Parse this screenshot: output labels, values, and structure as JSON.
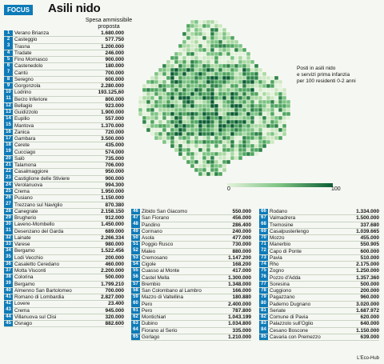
{
  "header": {
    "badge": "FOCUS",
    "title": "Asili nido",
    "column_header": "Spesa ammissibile proposta"
  },
  "map": {
    "caption_line1": "Posti in asili nido",
    "caption_line2": "e servizi prima infanzia",
    "caption_line3": "per 100 residenti 0-2 anni",
    "scale_min": "0",
    "scale_max": "100",
    "colors": {
      "light": "#e4f2db",
      "mid": "#7cc383",
      "dark": "#0c5e34",
      "border": "#ffffff"
    }
  },
  "footer": {
    "credit": "L'Eco-Hub"
  },
  "chart_data": {
    "type": "table",
    "column_header": "Spesa ammissibile proposta",
    "rows": [
      {
        "rank": "1",
        "name": "Verano Brianza",
        "value": "1.680.000"
      },
      {
        "rank": "2",
        "name": "Casteggio",
        "value": "577.750"
      },
      {
        "rank": "3",
        "name": "Trasna",
        "value": "1.200.000"
      },
      {
        "rank": "4",
        "name": "Tradate",
        "value": "246.000"
      },
      {
        "rank": "5",
        "name": "Fino Mornasco",
        "value": "900.000"
      },
      {
        "rank": "6",
        "name": "Castenedolo",
        "value": "180.000"
      },
      {
        "rank": "7",
        "name": "Cantù",
        "value": "700.000"
      },
      {
        "rank": "8",
        "name": "Seregno",
        "value": "600.000"
      },
      {
        "rank": "9",
        "name": "Gorgonzola",
        "value": "2.280.000"
      },
      {
        "rank": "10",
        "name": "Lodrino",
        "value": "193.125,60"
      },
      {
        "rank": "11",
        "name": "Berzo Inferiore",
        "value": "800.000"
      },
      {
        "rank": "12",
        "name": "Bellagio",
        "value": "923.000"
      },
      {
        "rank": "13",
        "name": "Guidizzolo",
        "value": "1.900.000"
      },
      {
        "rank": "14",
        "name": "Eupilio",
        "value": "557.000"
      },
      {
        "rank": "15",
        "name": "Mantova",
        "value": "1.370.000"
      },
      {
        "rank": "16",
        "name": "Zanica",
        "value": "720.000"
      },
      {
        "rank": "17",
        "name": "Gambara",
        "value": "3.500.000"
      },
      {
        "rank": "18",
        "name": "Cerete",
        "value": "435.000"
      },
      {
        "rank": "19",
        "name": "Cucciago",
        "value": "574.000"
      },
      {
        "rank": "20",
        "name": "Salò",
        "value": "735.000"
      },
      {
        "rank": "21",
        "name": "Talamona",
        "value": "706.000"
      },
      {
        "rank": "22",
        "name": "Casalmaggiore",
        "value": "950.000"
      },
      {
        "rank": "23",
        "name": "Castiglione delle Stiviere",
        "value": "900.000"
      },
      {
        "rank": "24",
        "name": "Verolanuova",
        "value": "994.300"
      },
      {
        "rank": "25",
        "name": "Crema",
        "value": "1.950.000"
      },
      {
        "rank": "26",
        "name": "Pusiano",
        "value": "1.150.000"
      },
      {
        "rank": "27",
        "name": "Trezzano sul Naviglio",
        "value": "870.380"
      },
      {
        "rank": "28",
        "name": "Canegrate",
        "value": "2.158.150"
      },
      {
        "rank": "29",
        "name": "Brugherio",
        "value": "912.000"
      },
      {
        "rank": "30",
        "name": "Laveno-Mombello",
        "value": "1.450.000"
      },
      {
        "rank": "31",
        "name": "Desenzano del Garda",
        "value": "689.000"
      },
      {
        "rank": "32",
        "name": "Lainate",
        "value": "2.266.334"
      },
      {
        "rank": "33",
        "name": "Varese",
        "value": "980.000"
      },
      {
        "rank": "34",
        "name": "Bergamo",
        "value": "1.522.456"
      },
      {
        "rank": "35",
        "name": "Lodi Vecchio",
        "value": "200.000"
      },
      {
        "rank": "36",
        "name": "Casaletto Ceredano",
        "value": "460.000"
      },
      {
        "rank": "37",
        "name": "Motta Visconti",
        "value": "2.200.000"
      },
      {
        "rank": "38",
        "name": "Colorina",
        "value": "500.000"
      },
      {
        "rank": "39",
        "name": "Bergamo",
        "value": "1.799.210"
      },
      {
        "rank": "40",
        "name": "Almenno San Bartolomeo",
        "value": "700.000"
      },
      {
        "rank": "41",
        "name": "Romano di Lombardia",
        "value": "2.827.000"
      },
      {
        "rank": "42",
        "name": "Lovere",
        "value": "23.400"
      },
      {
        "rank": "43",
        "name": "Crema",
        "value": "945.000"
      },
      {
        "rank": "44",
        "name": "Villanuova sul Clisi",
        "value": "320.000"
      },
      {
        "rank": "45",
        "name": "Osnago",
        "value": "882.600"
      },
      {
        "rank": "46",
        "name": "Zibido San Giacomo",
        "value": "550.000"
      },
      {
        "rank": "47",
        "name": "San Fiorano",
        "value": "456.000"
      },
      {
        "rank": "48",
        "name": "Pandino",
        "value": "286.400"
      },
      {
        "rank": "49",
        "name": "Cormano",
        "value": "240.000"
      },
      {
        "rank": "50",
        "name": "Asola",
        "value": "477.000"
      },
      {
        "rank": "51",
        "name": "Poggio Rusco",
        "value": "730.000"
      },
      {
        "rank": "52",
        "name": "Maleo",
        "value": "880.000"
      },
      {
        "rank": "53",
        "name": "Cremosano",
        "value": "1.147.200"
      },
      {
        "rank": "54",
        "name": "Cigole",
        "value": "168.200"
      },
      {
        "rank": "55",
        "name": "Cuasso al Monte",
        "value": "417.000"
      },
      {
        "rank": "56",
        "name": "Castel Mella",
        "value": "1.300.000"
      },
      {
        "rank": "57",
        "name": "Brembio",
        "value": "1.348.000"
      },
      {
        "rank": "58",
        "name": "San Colombano al Lambro",
        "value": "166.000"
      },
      {
        "rank": "59",
        "name": "Mazzo di Valtellina",
        "value": "180.880"
      },
      {
        "rank": "60",
        "name": "Pero",
        "value": "2.400.000"
      },
      {
        "rank": "61",
        "name": "Pero",
        "value": "787.800"
      },
      {
        "rank": "62",
        "name": "Montichiari",
        "value": "1.043.199"
      },
      {
        "rank": "63",
        "name": "Dubino",
        "value": "1.034.800"
      },
      {
        "rank": "64",
        "name": "Fiorano al Serio",
        "value": "335.000"
      },
      {
        "rank": "65",
        "name": "Gorlago",
        "value": "1.210.000"
      },
      {
        "rank": "66",
        "name": "Rodano",
        "value": "1.334.000"
      },
      {
        "rank": "67",
        "name": "Valmadrera",
        "value": "1.500.000"
      },
      {
        "rank": "68",
        "name": "Tremosine",
        "value": "337.680"
      },
      {
        "rank": "69",
        "name": "Casalpusterlengo",
        "value": "1.039.665"
      },
      {
        "rank": "70",
        "name": "Mozzo",
        "value": "455.000"
      },
      {
        "rank": "71",
        "name": "Manerbio",
        "value": "550.905"
      },
      {
        "rank": "72",
        "name": "Capo di Ponte",
        "value": "600.000"
      },
      {
        "rank": "73",
        "name": "Pavia",
        "value": "510.000"
      },
      {
        "rank": "74",
        "name": "Rho",
        "value": "2.175.000"
      },
      {
        "rank": "75",
        "name": "Zogno",
        "value": "1.250.000"
      },
      {
        "rank": "76",
        "name": "Pozzo d'Adda",
        "value": "1.357.360"
      },
      {
        "rank": "77",
        "name": "Soresina",
        "value": "500.000"
      },
      {
        "rank": "78",
        "name": "Cuggiono",
        "value": "200.000"
      },
      {
        "rank": "79",
        "name": "Pagazzano",
        "value": "960.000"
      },
      {
        "rank": "80",
        "name": "Paderno Dugnano",
        "value": "3.020.000"
      },
      {
        "rank": "81",
        "name": "Seriate",
        "value": "1.687.972"
      },
      {
        "rank": "82",
        "name": "Comune di Pavia",
        "value": "620.000"
      },
      {
        "rank": "83",
        "name": "Palazzolo sull'Oglio",
        "value": "640.000"
      },
      {
        "rank": "84",
        "name": "Cesano Boscone",
        "value": "1.150.000"
      },
      {
        "rank": "85",
        "name": "Cavaria con Premezzo",
        "value": "639.000"
      }
    ]
  }
}
